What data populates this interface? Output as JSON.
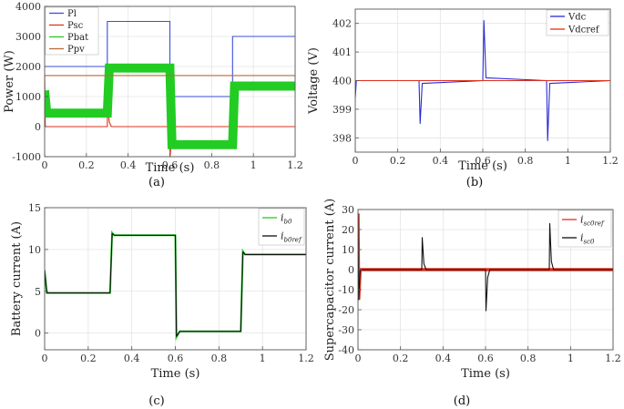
{
  "chart_data": [
    {
      "type": "line",
      "panel": "(a)",
      "xlabel": "Time (s)",
      "ylabel": "Power (W)",
      "xlim": [
        0,
        1.2
      ],
      "ylim": [
        -1000,
        4000
      ],
      "xticks": [
        "0",
        "0.2",
        "0.4",
        "0.6",
        "0.8",
        "1",
        "1.2"
      ],
      "yticks": [
        "-1000",
        "0",
        "1000",
        "2000",
        "3000",
        "4000"
      ],
      "xtick_values": [
        0,
        0.2,
        0.4,
        0.6,
        0.8,
        1.0,
        1.2
      ],
      "ytick_values": [
        -1000,
        0,
        1000,
        2000,
        3000,
        4000
      ],
      "legend_position": "top-left",
      "series": [
        {
          "name": "Pl",
          "color": "#3a4fd8",
          "points": [
            [
              0,
              2000
            ],
            [
              0.3,
              2000
            ],
            [
              0.3,
              3500
            ],
            [
              0.6,
              3500
            ],
            [
              0.6,
              1000
            ],
            [
              0.9,
              1000
            ],
            [
              0.9,
              3000
            ],
            [
              1.2,
              3000
            ]
          ]
        },
        {
          "name": "Psc",
          "color": "#e0301e",
          "points": [
            [
              0,
              1700
            ],
            [
              0.003,
              0
            ],
            [
              0.3,
              0
            ],
            [
              0.301,
              700
            ],
            [
              0.31,
              150
            ],
            [
              0.32,
              0
            ],
            [
              0.6,
              0
            ],
            [
              0.601,
              -1000
            ],
            [
              0.61,
              -250
            ],
            [
              0.62,
              0
            ],
            [
              0.9,
              0
            ],
            [
              0.901,
              1250
            ],
            [
              0.91,
              300
            ],
            [
              0.92,
              0
            ],
            [
              1.2,
              0
            ]
          ]
        },
        {
          "name": "Pbat",
          "color": "#22cc22",
          "band": 150,
          "points": [
            [
              0,
              1200
            ],
            [
              0.01,
              450
            ],
            [
              0.3,
              450
            ],
            [
              0.31,
              1950
            ],
            [
              0.6,
              1950
            ],
            [
              0.61,
              -600
            ],
            [
              0.9,
              -600
            ],
            [
              0.91,
              1350
            ],
            [
              1.2,
              1350
            ]
          ]
        },
        {
          "name": "Ppv",
          "color": "#b96b3a",
          "points": [
            [
              0,
              1700
            ],
            [
              1.2,
              1700
            ]
          ]
        }
      ]
    },
    {
      "type": "line",
      "panel": "(b)",
      "xlabel": "Time (s)",
      "ylabel": "Voltage (V)",
      "xlim": [
        0,
        1.2
      ],
      "ylim": [
        397.5,
        402.5
      ],
      "xticks": [
        "0",
        "0.2",
        "0.4",
        "0.6",
        "0.8",
        "1",
        "1.2"
      ],
      "yticks": [
        "398",
        "399",
        "400",
        "401",
        "402"
      ],
      "xtick_values": [
        0,
        0.2,
        0.4,
        0.6,
        0.8,
        1.0,
        1.2
      ],
      "ytick_values": [
        398,
        399,
        400,
        401,
        402
      ],
      "legend_position": "top-right",
      "series": [
        {
          "name": "Vdc",
          "color": "#2b2bd6",
          "points": [
            [
              0,
              399.4
            ],
            [
              0.005,
              400
            ],
            [
              0.3,
              400
            ],
            [
              0.305,
              398.5
            ],
            [
              0.315,
              399.9
            ],
            [
              0.6,
              400
            ],
            [
              0.605,
              402.1
            ],
            [
              0.615,
              400.1
            ],
            [
              0.9,
              400
            ],
            [
              0.905,
              397.9
            ],
            [
              0.915,
              399.9
            ],
            [
              1.2,
              400
            ]
          ]
        },
        {
          "name": "Vdcref",
          "color": "#e0301e",
          "points": [
            [
              0,
              400
            ],
            [
              1.2,
              400
            ]
          ]
        }
      ]
    },
    {
      "type": "line",
      "panel": "(c)",
      "xlabel": "Time (s)",
      "ylabel": "Battery current (A)",
      "xlim": [
        0,
        1.2
      ],
      "ylim": [
        -2,
        15
      ],
      "xticks": [
        "0",
        "0.2",
        "0.4",
        "0.6",
        "0.8",
        "1",
        "1.2"
      ],
      "yticks": [
        "0",
        "5",
        "10",
        "15"
      ],
      "xtick_values": [
        0,
        0.2,
        0.4,
        0.6,
        0.8,
        1.0,
        1.2
      ],
      "ytick_values": [
        0,
        5,
        10,
        15
      ],
      "legend_position": "top-right",
      "series": [
        {
          "name": "i",
          "sub": "b0",
          "color": "#22cc22",
          "band": 0.1,
          "points": [
            [
              0,
              7.5
            ],
            [
              0.01,
              4.8
            ],
            [
              0.3,
              4.8
            ],
            [
              0.31,
              12
            ],
            [
              0.32,
              11.7
            ],
            [
              0.6,
              11.7
            ],
            [
              0.605,
              -0.5
            ],
            [
              0.62,
              0.2
            ],
            [
              0.9,
              0.2
            ],
            [
              0.91,
              9.8
            ],
            [
              0.92,
              9.4
            ],
            [
              1.2,
              9.4
            ]
          ]
        },
        {
          "name": "i",
          "sub": "b0ref",
          "color": "#111111",
          "points": [
            [
              0,
              7.5
            ],
            [
              0.01,
              4.8
            ],
            [
              0.3,
              4.8
            ],
            [
              0.31,
              11.9
            ],
            [
              0.32,
              11.7
            ],
            [
              0.6,
              11.7
            ],
            [
              0.605,
              -0.4
            ],
            [
              0.62,
              0.2
            ],
            [
              0.9,
              0.2
            ],
            [
              0.91,
              9.7
            ],
            [
              0.92,
              9.4
            ],
            [
              1.2,
              9.4
            ]
          ]
        }
      ]
    },
    {
      "type": "line",
      "panel": "(d)",
      "xlabel": "Time (s)",
      "ylabel": "Supercapacitor current (A)",
      "xlim": [
        0,
        1.2
      ],
      "ylim": [
        -40,
        30
      ],
      "xticks": [
        "0",
        "0.2",
        "0.4",
        "0.6",
        "0.8",
        "1",
        "1.2"
      ],
      "yticks": [
        "-40",
        "-30",
        "-20",
        "-10",
        "0",
        "10",
        "20",
        "30"
      ],
      "xtick_values": [
        0,
        0.2,
        0.4,
        0.6,
        0.8,
        1.0,
        1.2
      ],
      "ytick_values": [
        -40,
        -30,
        -20,
        -10,
        0,
        10,
        20,
        30
      ],
      "legend_position": "top-right",
      "series": [
        {
          "name": "i",
          "sub": "sc0ref",
          "color": "#e0301e",
          "band": 0.8,
          "points": [
            [
              0,
              28
            ],
            [
              0.003,
              -15
            ],
            [
              0.01,
              0
            ],
            [
              1.2,
              0
            ]
          ]
        },
        {
          "name": "i",
          "sub": "sc0",
          "color": "#111111",
          "points": [
            [
              0,
              28
            ],
            [
              0.003,
              -15
            ],
            [
              0.01,
              0
            ],
            [
              0.3,
              0
            ],
            [
              0.302,
              16
            ],
            [
              0.31,
              3
            ],
            [
              0.32,
              0
            ],
            [
              0.6,
              0
            ],
            [
              0.602,
              -20.5
            ],
            [
              0.61,
              -4
            ],
            [
              0.62,
              0
            ],
            [
              0.9,
              0
            ],
            [
              0.902,
              23
            ],
            [
              0.91,
              4
            ],
            [
              0.92,
              0
            ],
            [
              1.2,
              0
            ]
          ]
        }
      ]
    }
  ],
  "captions": [
    "(a)",
    "(b)",
    "(c)",
    "(d)"
  ]
}
